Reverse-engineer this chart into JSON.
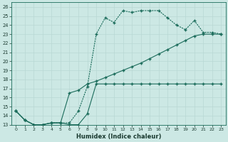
{
  "xlabel": "Humidex (Indice chaleur)",
  "bg_color": "#cce8e4",
  "grid_color": "#b0d4d0",
  "line_color": "#1a6b5a",
  "xlim": [
    -0.5,
    23.5
  ],
  "ylim": [
    13.0,
    26.5
  ],
  "xticks": [
    0,
    1,
    2,
    3,
    4,
    5,
    6,
    7,
    8,
    9,
    10,
    11,
    12,
    13,
    14,
    15,
    16,
    17,
    18,
    19,
    20,
    21,
    22,
    23
  ],
  "yticks": [
    13,
    14,
    15,
    16,
    17,
    18,
    19,
    20,
    21,
    22,
    23,
    24,
    25,
    26
  ],
  "line1_x": [
    0,
    1,
    2,
    3,
    4,
    5,
    6,
    7,
    8,
    9,
    10,
    11,
    12,
    13,
    14,
    15,
    16,
    17,
    18,
    19,
    20,
    21,
    22,
    23
  ],
  "line1_y": [
    14.5,
    13.5,
    13.0,
    13.0,
    13.2,
    13.2,
    13.0,
    13.0,
    14.2,
    17.5,
    17.5,
    17.5,
    17.5,
    17.5,
    17.5,
    17.5,
    17.5,
    17.5,
    17.5,
    17.5,
    17.5,
    17.5,
    17.5,
    17.5
  ],
  "line2_x": [
    0,
    1,
    2,
    3,
    4,
    5,
    6,
    7,
    8,
    9,
    10,
    11,
    12,
    13,
    14,
    15,
    16,
    17,
    18,
    19,
    20,
    21,
    22,
    23
  ],
  "line2_y": [
    14.5,
    13.5,
    13.0,
    13.0,
    13.2,
    13.2,
    13.2,
    14.5,
    17.2,
    23.0,
    24.8,
    24.3,
    25.6,
    25.4,
    25.6,
    25.6,
    25.6,
    24.8,
    24.0,
    23.5,
    24.5,
    23.2,
    23.2,
    23.0
  ],
  "line3_x": [
    0,
    1,
    2,
    3,
    4,
    5,
    6,
    7,
    8,
    9,
    10,
    11,
    12,
    13,
    14,
    15,
    16,
    17,
    18,
    19,
    20,
    21,
    22,
    23
  ],
  "line3_y": [
    14.5,
    13.5,
    13.0,
    13.0,
    13.2,
    13.2,
    16.5,
    16.8,
    17.5,
    17.8,
    18.2,
    18.6,
    19.0,
    19.4,
    19.8,
    20.3,
    20.8,
    21.3,
    21.8,
    22.3,
    22.8,
    23.0,
    23.0,
    23.0
  ]
}
